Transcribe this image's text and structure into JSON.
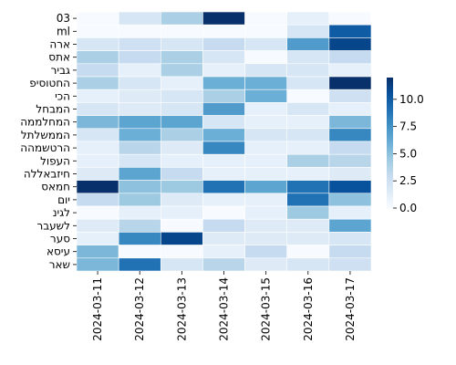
{
  "chart_data": {
    "type": "heatmap",
    "title": "",
    "xlabel": "",
    "ylabel": "",
    "rows": [
      "03",
      "ml",
      "ארה",
      "אתס",
      "גביר",
      "החטוסיפ",
      "הכי",
      "המבחל",
      "המחלממה",
      "הממשלתל",
      "הרטשמהה",
      "העפול",
      "חיזבאללה",
      "חמאס",
      "יום",
      "לגינ",
      "לשעבר",
      "סער",
      "עיסא",
      "שאר"
    ],
    "columns": [
      "2024-03-11",
      "2024-03-12",
      "2024-03-13",
      "2024-03-14",
      "2024-03-15",
      "2024-03-16",
      "2024-03-17"
    ],
    "values": [
      [
        0,
        2,
        4,
        12,
        0,
        1,
        0
      ],
      [
        0,
        0,
        0,
        0,
        0,
        2,
        10
      ],
      [
        2,
        2.5,
        2,
        3,
        2,
        7,
        11
      ],
      [
        4,
        3,
        4,
        2,
        0,
        2,
        3
      ],
      [
        3,
        1,
        4,
        1,
        2,
        2,
        1
      ],
      [
        4,
        2,
        1,
        6,
        6,
        2,
        12
      ],
      [
        1,
        1.5,
        2,
        4,
        6,
        0,
        2.5
      ],
      [
        2,
        1.5,
        2,
        7,
        1,
        2,
        1
      ],
      [
        5.5,
        6.5,
        6.5,
        2,
        1,
        1,
        5.5
      ],
      [
        2,
        6,
        4,
        6,
        2,
        2,
        8
      ],
      [
        1,
        3.5,
        1.5,
        8,
        1,
        1,
        3
      ],
      [
        1,
        2,
        1,
        1,
        1,
        4,
        3.5
      ],
      [
        1.5,
        6.5,
        3,
        1,
        1,
        1,
        1.5
      ],
      [
        12,
        5,
        4.5,
        9,
        6.5,
        9,
        10.5
      ],
      [
        3,
        4.5,
        1.5,
        1,
        1,
        9,
        5
      ],
      [
        0,
        1,
        1,
        0,
        1,
        4.5,
        1
      ],
      [
        1.5,
        3.5,
        0,
        3,
        1.5,
        1.5,
        6.5
      ],
      [
        1,
        8,
        11,
        1.5,
        1.5,
        1.5,
        2
      ],
      [
        5.5,
        0,
        0,
        1,
        3,
        0,
        3
      ],
      [
        5.5,
        9,
        2,
        3.5,
        1.5,
        2,
        2.5
      ]
    ],
    "vmin": 0,
    "vmax": 12,
    "colorbar_ticks": [
      {
        "value": 0,
        "label": "0.0"
      },
      {
        "value": 2.5,
        "label": "2.5"
      },
      {
        "value": 5,
        "label": "5.0"
      },
      {
        "value": 7.5,
        "label": "7.5"
      },
      {
        "value": 10,
        "label": "10.0"
      }
    ],
    "colormap": "Blues",
    "colormap_stops": [
      "#f7fbff",
      "#deebf7",
      "#c6dbef",
      "#9ecae1",
      "#6baed6",
      "#4292c6",
      "#2171b5",
      "#08519c",
      "#08306b"
    ],
    "grid": false,
    "legend": "colorbar-right"
  }
}
